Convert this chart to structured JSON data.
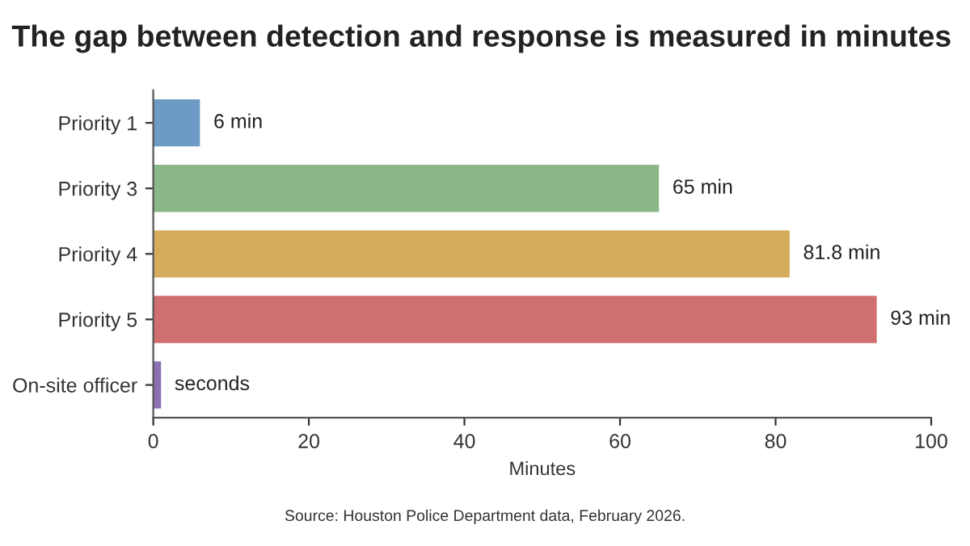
{
  "chart_data": {
    "type": "bar",
    "orientation": "horizontal",
    "title": "The gap between detection and response is measured in minutes",
    "xlabel": "Minutes",
    "categories": [
      "Priority 1",
      "Priority 3",
      "Priority 4",
      "Priority 5",
      "On-site officer"
    ],
    "values": [
      6,
      65,
      81.8,
      93,
      1
    ],
    "colors": [
      "#6e9bc5",
      "#8ab888",
      "#d5ab5c",
      "#cf6f70",
      "#8c70b4"
    ],
    "value_labels": [
      "6 min",
      "65 min",
      "81.8 min",
      "93 min",
      "seconds"
    ],
    "xlim": [
      0,
      100
    ],
    "xticks": [
      0,
      20,
      40,
      60,
      80,
      100
    ],
    "grid": false,
    "annotations": [
      "Source: Houston Police Department data, February 2026."
    ]
  }
}
